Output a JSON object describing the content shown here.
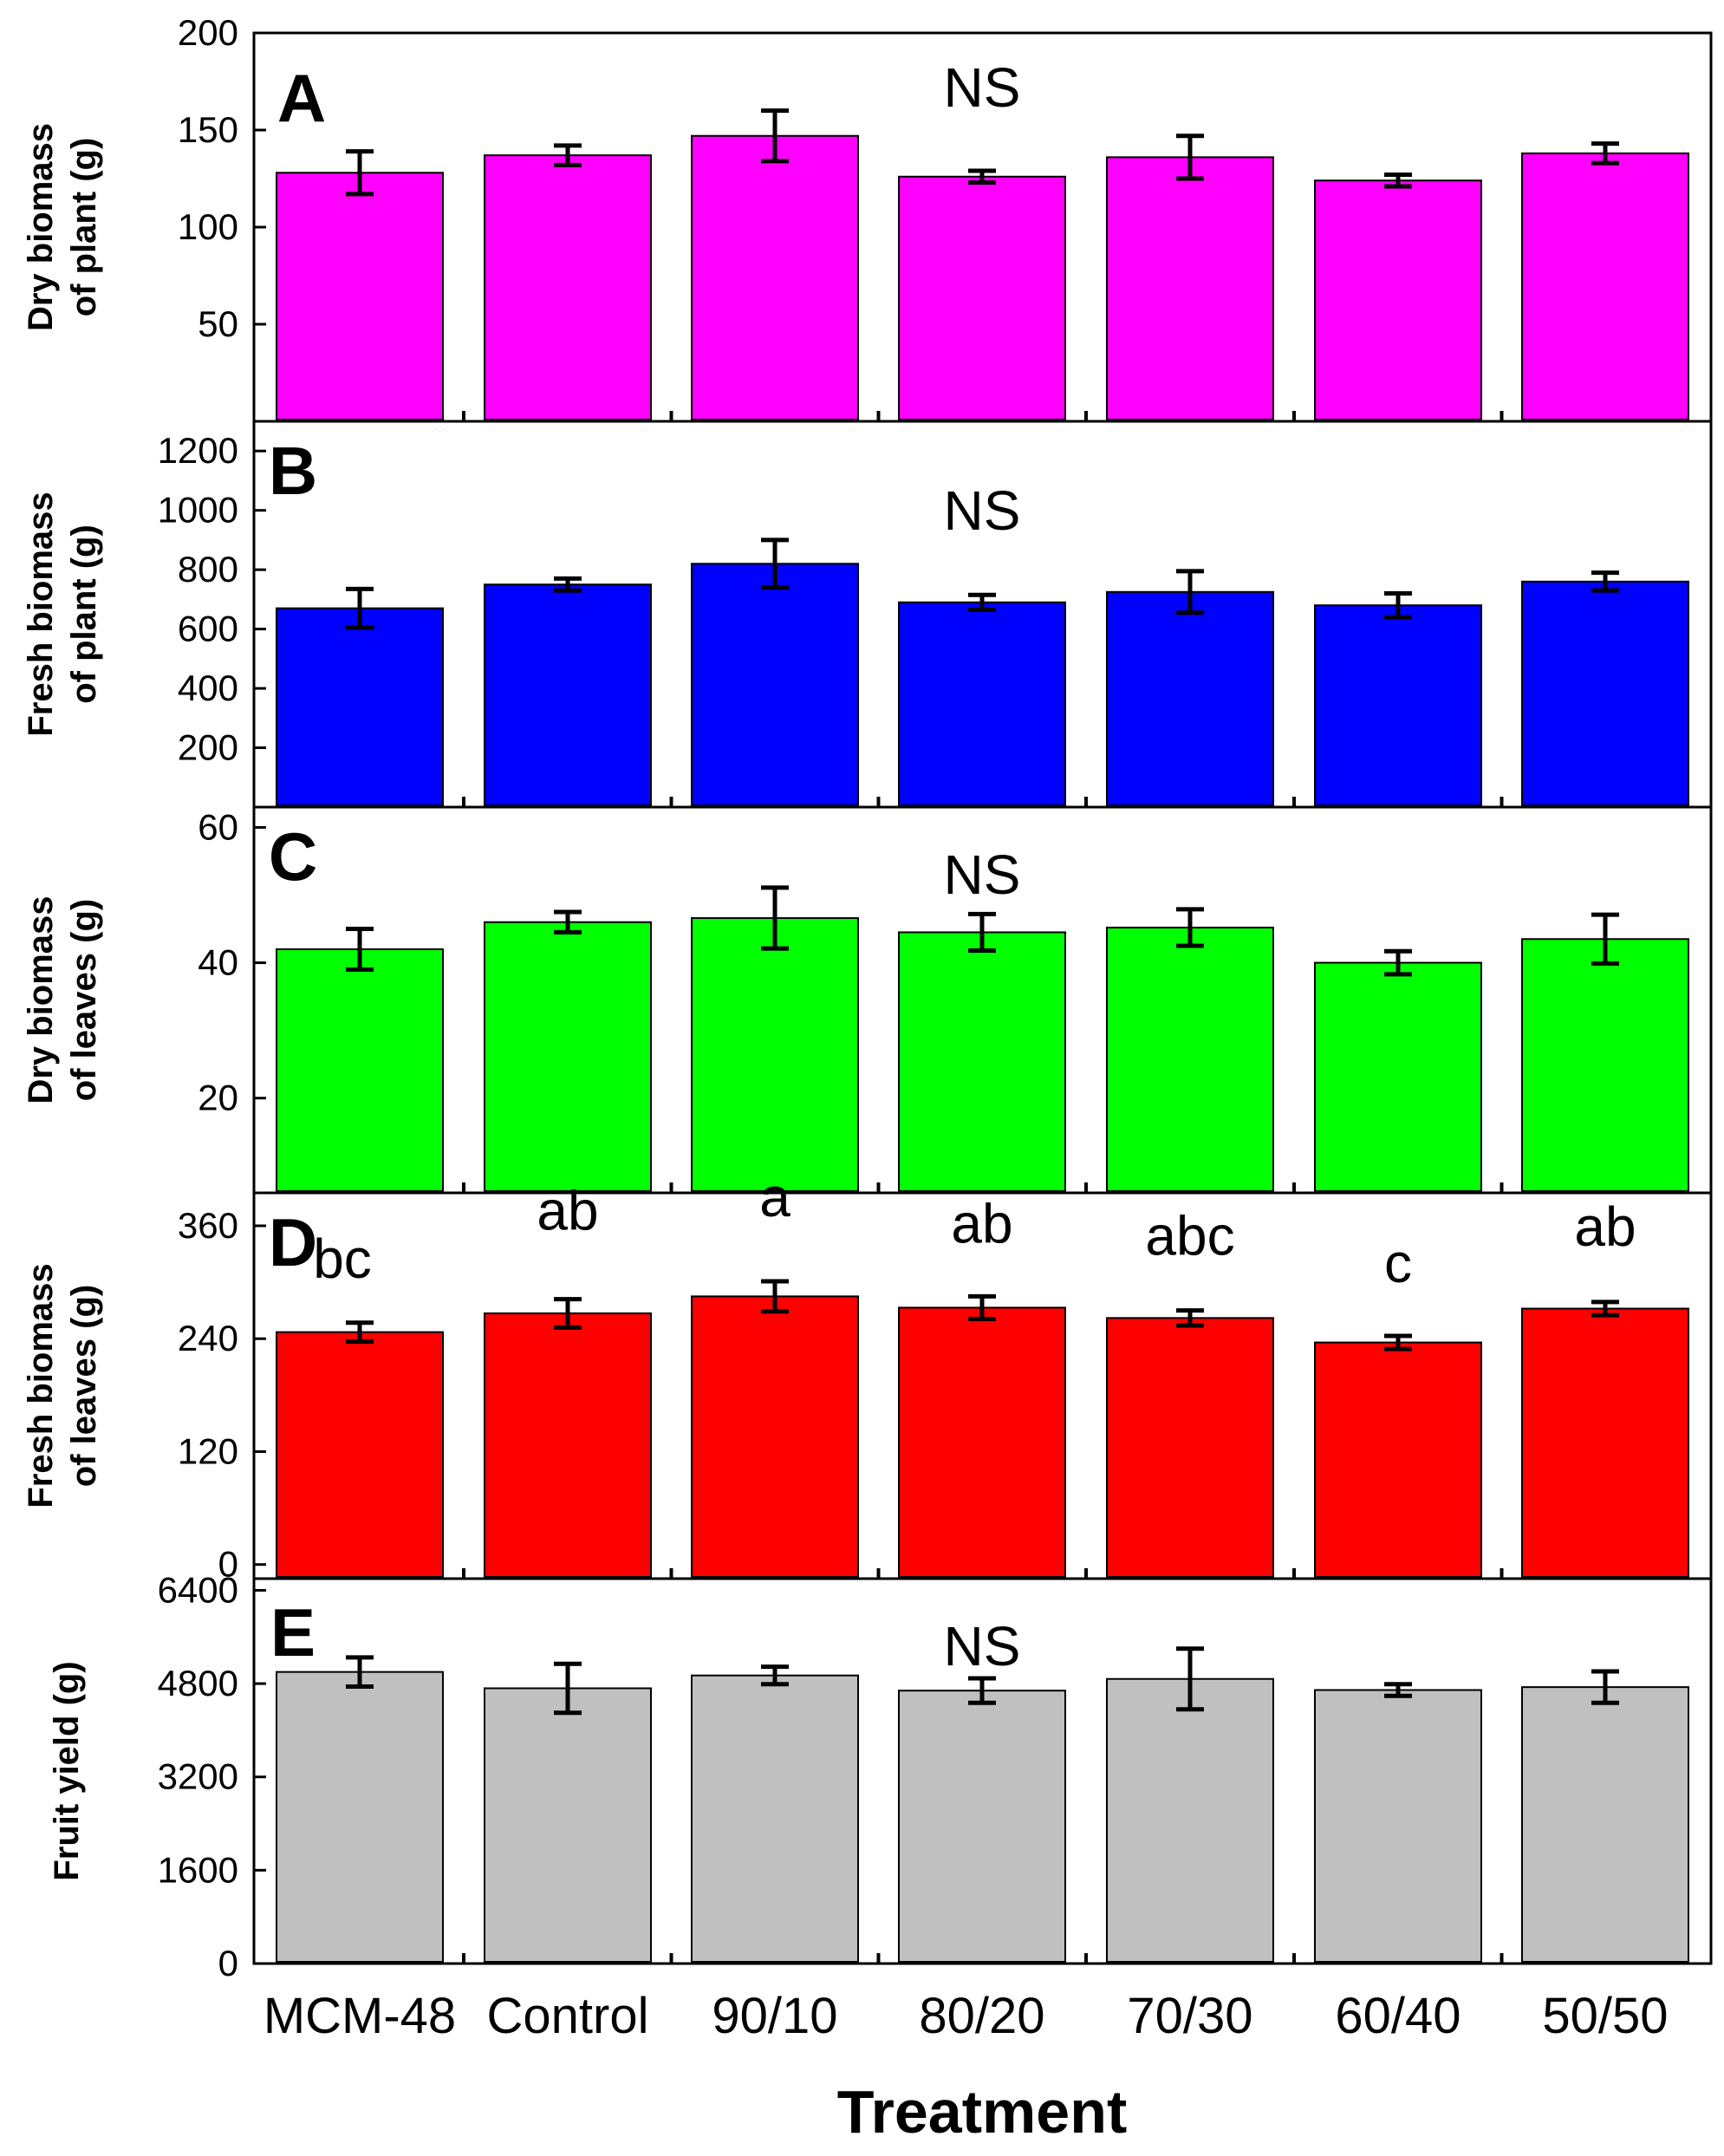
{
  "chart_data": [
    {
      "type": "bar",
      "panel": "A",
      "title": "",
      "ylabel_lines": [
        "Dry biomass",
        "of plant (g)"
      ],
      "xlabel": "Treatment",
      "categories": [
        "MCM-48",
        "Control",
        "90/10",
        "80/20",
        "70/30",
        "60/40",
        "50/50"
      ],
      "values": [
        128,
        137,
        147,
        126,
        136,
        124,
        138
      ],
      "errors": [
        11,
        5,
        13,
        3,
        11,
        3,
        5
      ],
      "ylim": [
        0,
        200
      ],
      "yticks": [
        50,
        100,
        150,
        200
      ],
      "significance": [
        "NS"
      ],
      "color": "#ff00ff",
      "legend": "none"
    },
    {
      "type": "bar",
      "panel": "B",
      "ylabel_lines": [
        "Fresh biomass",
        "of plant (g)"
      ],
      "categories": [
        "MCM-48",
        "Control",
        "90/10",
        "80/20",
        "70/30",
        "60/40",
        "50/50"
      ],
      "values": [
        670,
        750,
        820,
        690,
        725,
        680,
        760
      ],
      "errors": [
        65,
        20,
        80,
        25,
        70,
        40,
        30
      ],
      "ylim": [
        0,
        1300
      ],
      "yticks": [
        200,
        400,
        600,
        800,
        1000,
        1200
      ],
      "significance": [
        "NS"
      ],
      "color": "#0000ff",
      "legend": "none"
    },
    {
      "type": "bar",
      "panel": "C",
      "ylabel_lines": [
        "Dry biomass",
        "of leaves (g)"
      ],
      "categories": [
        "MCM-48",
        "Control",
        "90/10",
        "80/20",
        "70/30",
        "60/40",
        "50/50"
      ],
      "values": [
        42,
        46,
        46.6,
        44.5,
        45.2,
        40,
        43.5
      ],
      "errors": [
        3,
        1.5,
        4.5,
        2.7,
        2.7,
        1.7,
        3.6
      ],
      "ylim": [
        6,
        63
      ],
      "yticks": [
        20,
        40,
        60
      ],
      "significance": [
        "NS"
      ],
      "color": "#00ff00",
      "legend": "none"
    },
    {
      "type": "bar",
      "panel": "D",
      "ylabel_lines": [
        "Fresh biomass",
        "of leaves (g)"
      ],
      "categories": [
        "MCM-48",
        "Control",
        "90/10",
        "80/20",
        "70/30",
        "60/40",
        "50/50"
      ],
      "values": [
        247,
        267,
        285,
        273,
        262,
        236,
        272
      ],
      "errors": [
        10,
        15,
        16,
        12,
        8,
        7,
        7
      ],
      "ylim": [
        -15,
        395
      ],
      "yticks": [
        0,
        120,
        240,
        360
      ],
      "significance": [
        "bc",
        "ab",
        "a",
        "ab",
        "abc",
        "c",
        "ab"
      ],
      "color": "#ff0000",
      "legend": "none"
    },
    {
      "type": "bar",
      "panel": "E",
      "ylabel_lines": [
        "Fruit yield (g)"
      ],
      "categories": [
        "MCM-48",
        "Control",
        "90/10",
        "80/20",
        "70/30",
        "60/40",
        "50/50"
      ],
      "values": [
        5000,
        4720,
        4940,
        4680,
        4880,
        4690,
        4740
      ],
      "errors": [
        250,
        420,
        150,
        210,
        520,
        100,
        270
      ],
      "ylim": [
        0,
        6600
      ],
      "yticks": [
        0,
        1600,
        3200,
        4800,
        6400
      ],
      "significance": [
        "NS"
      ],
      "color": "#c0c0c0",
      "legend": "none"
    }
  ]
}
